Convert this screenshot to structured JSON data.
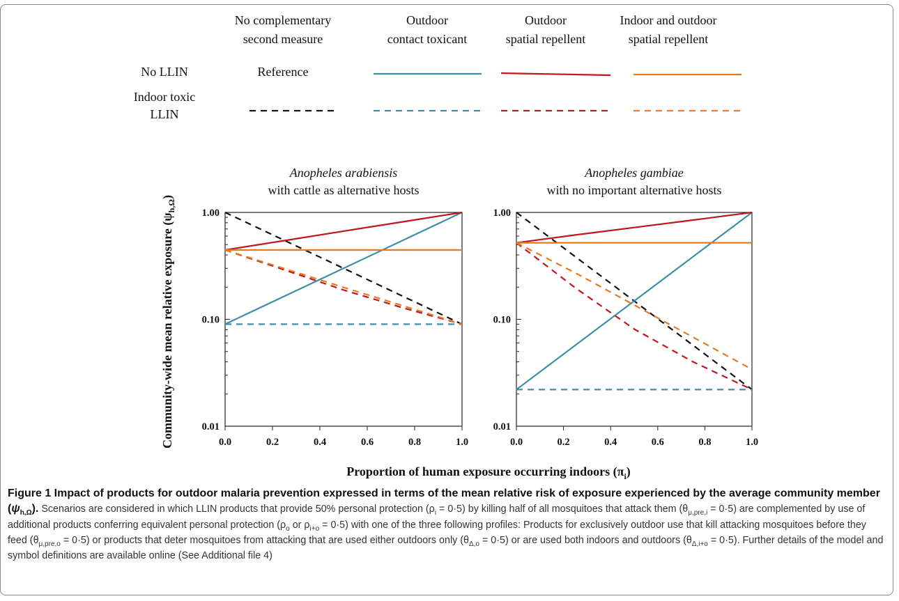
{
  "legend": {
    "col_headers": [
      [
        "No complementary",
        "second  measure"
      ],
      [
        "Outdoor",
        "contact toxicant"
      ],
      [
        "Outdoor",
        "spatial repellent"
      ],
      [
        "Indoor and outdoor",
        "spatial repellent"
      ]
    ],
    "row_labels": [
      [
        "No LLIN"
      ],
      [
        "Indoor toxic",
        "LLIN"
      ]
    ],
    "reference_label": "Reference",
    "colors": {
      "black": "#111111",
      "teal": "#3d8fa8",
      "red": "#c0161c",
      "orange": "#e8791e"
    }
  },
  "y_axis_title": "Community-wide mean relative exposure (ψ",
  "y_axis_sub": "h,Ω",
  "y_axis_close": ")",
  "x_axis_title": "Proportion of human exposure occurring indoors (π",
  "x_axis_sub": "i",
  "x_axis_close": ")",
  "chart_data": [
    {
      "type": "line",
      "title_italic": "Anopheles arabiensis",
      "title_rest": "with cattle as alternative hosts",
      "xlim": [
        0,
        1
      ],
      "ylim": [
        0.01,
        1
      ],
      "yscale": "log",
      "x_ticks": [
        "0.0",
        "0.2",
        "0.4",
        "0.6",
        "0.8",
        "1.0"
      ],
      "y_ticks": [
        "1.00",
        "0.10",
        "0.01"
      ],
      "series": [
        {
          "key": "none-llin",
          "color": "#111111",
          "dash": true,
          "x": [
            0,
            1
          ],
          "y": [
            1.0,
            0.09
          ]
        },
        {
          "key": "toxicant-nollin",
          "color": "#3d8fa8",
          "dash": false,
          "x": [
            0,
            1
          ],
          "y": [
            0.09,
            1.0
          ]
        },
        {
          "key": "toxicant-llin",
          "color": "#3d8fa8",
          "dash": true,
          "x": [
            0,
            1
          ],
          "y": [
            0.09,
            0.09
          ]
        },
        {
          "key": "outdoor-rep-nollin",
          "color": "#c0161c",
          "dash": false,
          "x": [
            0,
            0.25,
            0.5,
            0.75,
            1
          ],
          "y": [
            0.445,
            0.545,
            0.668,
            0.817,
            1.0
          ]
        },
        {
          "key": "outdoor-rep-llin",
          "color": "#c0161c",
          "dash": true,
          "x": [
            0,
            0.25,
            0.5,
            0.75,
            1
          ],
          "y": [
            0.445,
            0.29,
            0.188,
            0.128,
            0.09
          ]
        },
        {
          "key": "inout-rep-nollin",
          "color": "#e8791e",
          "dash": false,
          "x": [
            0,
            1
          ],
          "y": [
            0.445,
            0.445
          ]
        },
        {
          "key": "inout-rep-llin",
          "color": "#e8791e",
          "dash": true,
          "x": [
            0,
            0.25,
            0.5,
            0.75,
            1
          ],
          "y": [
            0.445,
            0.298,
            0.199,
            0.134,
            0.09
          ]
        }
      ]
    },
    {
      "type": "line",
      "title_italic": "Anopheles gambiae",
      "title_rest": "with no important alternative hosts",
      "xlim": [
        0,
        1
      ],
      "ylim": [
        0.01,
        1
      ],
      "yscale": "log",
      "x_ticks": [
        "0.0",
        "0.2",
        "0.4",
        "0.6",
        "0.8",
        "1.0"
      ],
      "y_ticks": [
        "1.00",
        "0.10",
        "0.01"
      ],
      "series": [
        {
          "key": "none-llin",
          "color": "#111111",
          "dash": true,
          "x": [
            0,
            1
          ],
          "y": [
            1.0,
            0.022
          ]
        },
        {
          "key": "toxicant-nollin",
          "color": "#3d8fa8",
          "dash": false,
          "x": [
            0,
            1
          ],
          "y": [
            0.022,
            1.0
          ]
        },
        {
          "key": "toxicant-llin",
          "color": "#3d8fa8",
          "dash": true,
          "x": [
            0,
            1
          ],
          "y": [
            0.022,
            0.022
          ]
        },
        {
          "key": "outdoor-rep-nollin",
          "color": "#c0161c",
          "dash": false,
          "x": [
            0,
            0.25,
            0.5,
            0.75,
            1
          ],
          "y": [
            0.52,
            0.615,
            0.722,
            0.848,
            1.0
          ]
        },
        {
          "key": "outdoor-rep-llin",
          "color": "#c0161c",
          "dash": true,
          "x": [
            0,
            0.25,
            0.5,
            0.75,
            1
          ],
          "y": [
            0.52,
            0.197,
            0.081,
            0.04,
            0.022
          ]
        },
        {
          "key": "inout-rep-nollin",
          "color": "#e8791e",
          "dash": false,
          "x": [
            0,
            1
          ],
          "y": [
            0.52,
            0.52
          ]
        },
        {
          "key": "inout-rep-llin",
          "color": "#e8791e",
          "dash": true,
          "x": [
            0,
            0.25,
            0.5,
            0.75,
            1
          ],
          "y": [
            0.52,
            0.272,
            0.136,
            0.068,
            0.034
          ]
        }
      ]
    }
  ],
  "caption": {
    "bold": "Figure 1 Impact of products for outdoor malaria prevention expressed in terms of the mean relative risk of exposure experienced by the average community member (",
    "bold_sym": "ψ",
    "bold_sub": "h,Ω",
    "bold_end": ").",
    "body": [
      {
        "t": " Scenarios are considered in which LLIN products that provide 50% personal protection ("
      },
      {
        "t": "ρ",
        "sub": "i"
      },
      {
        "t": " = 0·5) by killing half of all mosquitoes that attack them ("
      },
      {
        "t": "θ",
        "sub": "μ,pre,i"
      },
      {
        "t": " = 0·5) are complemented by use of additional products conferring equivalent personal protection ("
      },
      {
        "t": "ρ",
        "sub": "o"
      },
      {
        "t": " or "
      },
      {
        "t": "ρ",
        "sub": "i+o"
      },
      {
        "t": " = 0·5) with one of the three following profiles: Products for exclusively outdoor use that kill attacking mosquitoes before they feed ("
      },
      {
        "t": "θ",
        "sub": "μ,pre,o"
      },
      {
        "t": " = 0·5) or products that deter mosquitoes from attacking that are used either outdoors only ("
      },
      {
        "t": "θ",
        "sub": "Δ,o"
      },
      {
        "t": " = 0·5) or are used both indoors and outdoors ("
      },
      {
        "t": "θ",
        "sub": "Δ,i+o"
      },
      {
        "t": " = 0·5). Further details of the model and symbol definitions are available online (See Additional file 4)"
      }
    ]
  }
}
